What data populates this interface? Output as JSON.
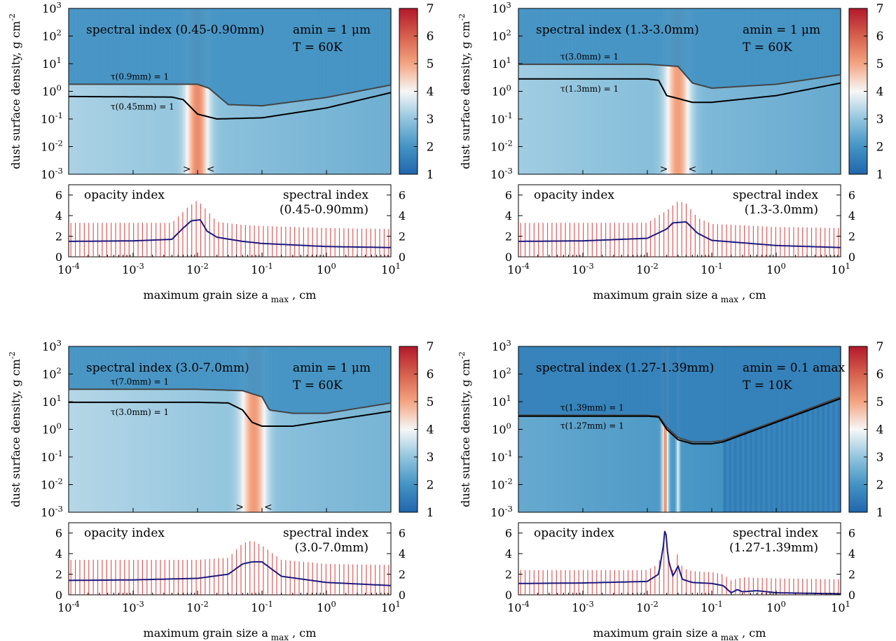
{
  "colorbar": {
    "ticks": [
      "1",
      "2",
      "3",
      "4",
      "5",
      "6",
      "7"
    ],
    "range": [
      1,
      7
    ],
    "colors": [
      "#2166ac",
      "#4393c3",
      "#92c5de",
      "#f7f7f7",
      "#fddbc7",
      "#f4a582",
      "#d6604d",
      "#b2182b"
    ]
  },
  "axes_text": {
    "ylabel": "dust surface density, g cm",
    "ylabel_exp": "-2",
    "xlabel_main": "maximum grain size a",
    "xlabel_sub": "max",
    "xlabel_unit": " , cm",
    "opacity_label": "opacity index",
    "spectral_label": "spectral index",
    "top_yticks": [
      {
        "m": "10",
        "e": "3"
      },
      {
        "m": "10",
        "e": "2"
      },
      {
        "m": "10",
        "e": "1"
      },
      {
        "m": "10",
        "e": "0"
      },
      {
        "m": "10",
        "e": "-1"
      },
      {
        "m": "10",
        "e": "-2"
      },
      {
        "m": "10",
        "e": "-3"
      }
    ],
    "bottom_yticks": [
      "0",
      "2",
      "4",
      "6"
    ],
    "xticks": [
      {
        "m": "10",
        "e": "-4"
      },
      {
        "m": "10",
        "e": "-3"
      },
      {
        "m": "10",
        "e": "-2"
      },
      {
        "m": "10",
        "e": "-1"
      },
      {
        "m": "10",
        "e": "0"
      },
      {
        "m": "10",
        "e": "1"
      }
    ],
    "marker_left": ">",
    "marker_right": "<"
  },
  "chart_data": [
    {
      "type": "heatmap",
      "title": "spectral index (0.45-0.90mm)",
      "params": [
        "amin = 1 μm",
        "T = 60K"
      ],
      "xlabel": "maximum grain size a_max , cm",
      "ylabel": "dust surface density, g cm^-2",
      "xscale": "log",
      "xlim": [
        0.0001,
        10
      ],
      "yscale": "log",
      "ylim": [
        0.001,
        1000
      ],
      "background_index": 2.9,
      "peak": {
        "center": 0.01,
        "width_decades": 0.17,
        "value": 5.3
      },
      "markers": [
        0.0068,
        0.016
      ],
      "contours": [
        {
          "label": "τ(0.9mm) = 1",
          "x": [
            0.0001,
            0.01,
            0.015,
            0.03,
            0.1,
            1,
            10
          ],
          "y": [
            1.8,
            1.8,
            1.3,
            0.33,
            0.3,
            0.6,
            1.7
          ]
        },
        {
          "label": "τ(0.45mm) = 1",
          "x": [
            0.0001,
            0.004,
            0.006,
            0.01,
            0.02,
            0.1,
            1,
            10
          ],
          "y": [
            0.65,
            0.62,
            0.5,
            0.15,
            0.1,
            0.11,
            0.25,
            0.9
          ]
        }
      ],
      "bottom": {
        "ylim": [
          0,
          7
        ],
        "spectral_index": {
          "label": "(0.45-0.90mm)",
          "x": [
            0.0001,
            0.001,
            0.004,
            0.007,
            0.01,
            0.014,
            0.02,
            0.05,
            0.1,
            1,
            10
          ],
          "y": [
            3.3,
            3.3,
            3.3,
            4.8,
            5.5,
            4.5,
            3.4,
            3.1,
            3.0,
            2.8,
            2.7
          ]
        },
        "opacity_index": {
          "x": [
            0.0001,
            0.001,
            0.004,
            0.006,
            0.008,
            0.011,
            0.014,
            0.02,
            0.05,
            0.1,
            1,
            10
          ],
          "y": [
            1.5,
            1.55,
            1.7,
            2.8,
            3.5,
            3.6,
            2.5,
            1.9,
            1.5,
            1.3,
            1.0,
            0.9
          ]
        }
      }
    },
    {
      "type": "heatmap",
      "title": "spectral index (1.3-3.0mm)",
      "params": [
        "amin = 1 μm",
        "T = 60K"
      ],
      "xlabel": "maximum grain size a_max , cm",
      "ylabel": "dust surface density, g cm^-2",
      "xscale": "log",
      "xlim": [
        0.0001,
        10
      ],
      "yscale": "log",
      "ylim": [
        0.001,
        1000
      ],
      "background_index": 2.8,
      "peak": {
        "center": 0.03,
        "width_decades": 0.19,
        "value": 5.1
      },
      "markers": [
        0.018,
        0.05
      ],
      "contours": [
        {
          "label": "τ(3.0mm) = 1",
          "x": [
            0.0001,
            0.01,
            0.03,
            0.05,
            0.1,
            1,
            10
          ],
          "y": [
            9.5,
            9.5,
            8,
            2,
            1.3,
            1.8,
            4
          ]
        },
        {
          "label": "τ(1.3mm) = 1",
          "x": [
            0.0001,
            0.01,
            0.015,
            0.02,
            0.03,
            0.05,
            0.1,
            1,
            10
          ],
          "y": [
            2.8,
            2.8,
            2.5,
            0.7,
            0.55,
            0.4,
            0.4,
            0.7,
            2
          ]
        }
      ],
      "bottom": {
        "ylim": [
          0,
          7
        ],
        "spectral_index": {
          "label": "(1.3-3.0mm)",
          "x": [
            0.0001,
            0.001,
            0.01,
            0.02,
            0.03,
            0.04,
            0.06,
            0.1,
            1,
            10
          ],
          "y": [
            3.3,
            3.3,
            3.3,
            4.5,
            5.4,
            5.2,
            3.8,
            3.2,
            2.9,
            2.8
          ]
        },
        "opacity_index": {
          "x": [
            0.0001,
            0.001,
            0.01,
            0.02,
            0.025,
            0.04,
            0.06,
            0.1,
            1,
            10
          ],
          "y": [
            1.5,
            1.55,
            1.8,
            2.7,
            3.3,
            3.4,
            2.3,
            1.6,
            1.1,
            0.9
          ]
        }
      }
    },
    {
      "type": "heatmap",
      "title": "spectral index (3.0-7.0mm)",
      "params": [
        "amin = 1 μm",
        "T = 60K"
      ],
      "xlabel": "maximum grain size a_max , cm",
      "ylabel": "dust surface density, g cm^-2",
      "xscale": "log",
      "xlim": [
        0.0001,
        10
      ],
      "yscale": "log",
      "ylim": [
        0.001,
        1000
      ],
      "background_index": 3.0,
      "peak": {
        "center": 0.075,
        "width_decades": 0.19,
        "value": 5.2
      },
      "markers": [
        0.045,
        0.125
      ],
      "contours": [
        {
          "label": "τ(7.0mm) = 1",
          "x": [
            0.0001,
            0.01,
            0.05,
            0.1,
            0.13,
            0.3,
            1,
            10
          ],
          "y": [
            28,
            28,
            25,
            15,
            5,
            3.8,
            3.8,
            9
          ]
        },
        {
          "label": "τ(3.0mm) = 1",
          "x": [
            0.0001,
            0.01,
            0.03,
            0.05,
            0.07,
            0.1,
            0.3,
            1,
            10
          ],
          "y": [
            9.5,
            9.5,
            9,
            5,
            1.8,
            1.3,
            1.3,
            2,
            4.5
          ]
        }
      ],
      "bottom": {
        "ylim": [
          0,
          7
        ],
        "spectral_index": {
          "label": "(3.0-7.0mm)",
          "x": [
            0.0001,
            0.001,
            0.01,
            0.03,
            0.05,
            0.07,
            0.1,
            0.2,
            1,
            10
          ],
          "y": [
            3.4,
            3.4,
            3.4,
            3.6,
            5.0,
            5.3,
            4.8,
            3.4,
            3.0,
            2.9
          ]
        },
        "opacity_index": {
          "x": [
            0.0001,
            0.001,
            0.01,
            0.03,
            0.05,
            0.07,
            0.1,
            0.2,
            1,
            10
          ],
          "y": [
            1.4,
            1.45,
            1.6,
            2.0,
            3.0,
            3.2,
            3.2,
            1.8,
            1.2,
            0.9
          ]
        }
      }
    },
    {
      "type": "heatmap",
      "title": "spectral index (1.27-1.39mm)",
      "params": [
        "amin = 0.1 amax",
        "T = 10K"
      ],
      "xlabel": "maximum grain size a_max , cm",
      "ylabel": "dust surface density, g cm^-2",
      "xscale": "log",
      "xlim": [
        0.0001,
        10
      ],
      "yscale": "log",
      "ylim": [
        0.001,
        1000
      ],
      "background_index": 2.1,
      "peak": {
        "center": 0.019,
        "width_decades": 0.05,
        "value": 5.3
      },
      "secondary": {
        "center": 0.03,
        "width_decades": 0.03,
        "value": 3.7
      },
      "dark_band": {
        "from": 0.15,
        "to": 10,
        "value": 1.6
      },
      "markers": [],
      "contours": [
        {
          "label": "τ(1.39mm) = 1",
          "x": [
            0.0001,
            0.01,
            0.015,
            0.02,
            0.03,
            0.05,
            0.1,
            0.15,
            1,
            10
          ],
          "y": [
            3.2,
            3.2,
            3,
            1.2,
            0.5,
            0.35,
            0.35,
            0.4,
            2,
            15
          ]
        },
        {
          "label": "τ(1.27mm) = 1",
          "x": [
            0.0001,
            0.01,
            0.015,
            0.02,
            0.03,
            0.05,
            0.1,
            0.15,
            1,
            10
          ],
          "y": [
            3.0,
            3.0,
            2.8,
            1.0,
            0.42,
            0.3,
            0.3,
            0.35,
            1.8,
            13
          ]
        }
      ],
      "bottom": {
        "ylim": [
          0,
          7
        ],
        "spectral_index": {
          "label": "(1.27-1.39mm)",
          "x": [
            0.0001,
            0.001,
            0.01,
            0.015,
            0.018,
            0.02,
            0.025,
            0.03,
            0.035,
            0.05,
            0.1,
            0.15,
            0.2,
            0.3,
            1,
            10
          ],
          "y": [
            2.4,
            2.4,
            2.4,
            3.0,
            5.5,
            4.5,
            2.4,
            4.2,
            2.6,
            2.3,
            2.2,
            2.0,
            1.4,
            1.7,
            1.6,
            1.5
          ]
        },
        "opacity_index": {
          "x": [
            0.0001,
            0.001,
            0.01,
            0.015,
            0.018,
            0.019,
            0.021,
            0.025,
            0.03,
            0.035,
            0.05,
            0.1,
            0.15,
            0.2,
            0.25,
            0.3,
            0.5,
            1,
            10
          ],
          "y": [
            1.1,
            1.15,
            1.3,
            2.0,
            5.0,
            6.8,
            3.5,
            1.8,
            2.8,
            1.5,
            1.2,
            1.1,
            0.9,
            0.2,
            0.5,
            0.3,
            0.4,
            0.2,
            0.1
          ]
        }
      }
    }
  ]
}
